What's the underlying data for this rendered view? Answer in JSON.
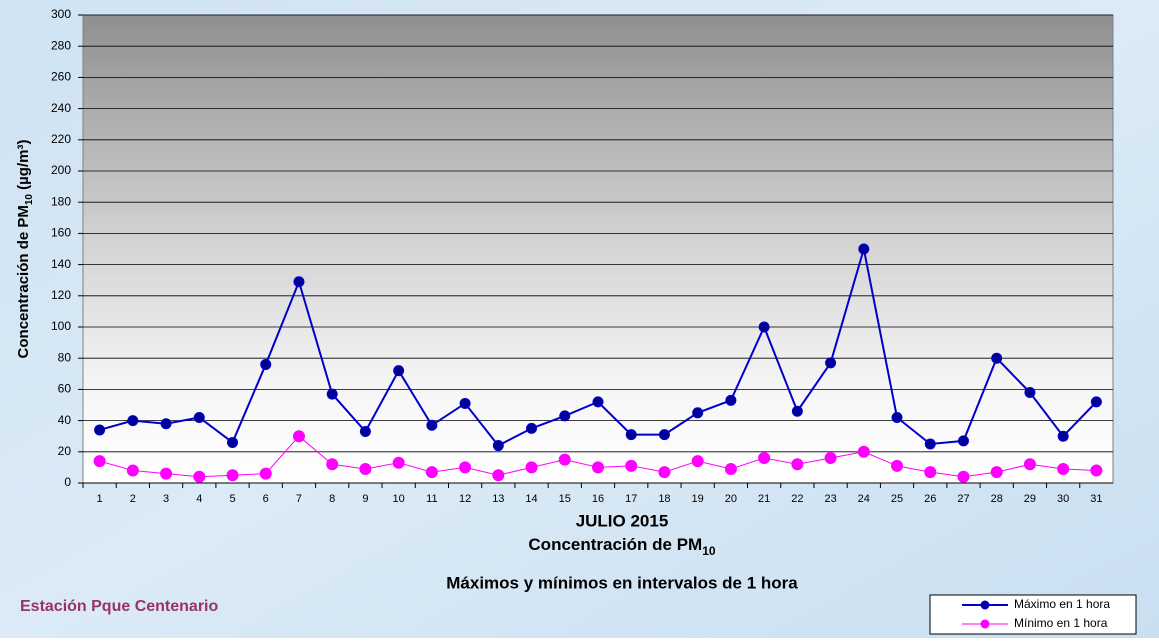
{
  "chart_data": {
    "type": "line",
    "title_lines": [
      "JULIO 2015",
      {
        "text": "Concentración de PM",
        "sub": "10"
      },
      "Máximos y mínimos en intervalos de 1 hora"
    ],
    "station": "Estación Pque Centenario",
    "y_label": {
      "text": "Concentración de PM",
      "sub": "10",
      "suffix": " (µg/m³)"
    },
    "categories": [
      "1",
      "2",
      "3",
      "4",
      "5",
      "6",
      "7",
      "8",
      "9",
      "10",
      "11",
      "12",
      "13",
      "14",
      "15",
      "16",
      "17",
      "18",
      "19",
      "20",
      "21",
      "22",
      "23",
      "24",
      "25",
      "26",
      "27",
      "28",
      "29",
      "30",
      "31"
    ],
    "series": [
      {
        "name": "Máximo en 1 hora",
        "color": "#0000cc",
        "marker_color": "#000099",
        "values": [
          34,
          40,
          38,
          42,
          26,
          76,
          129,
          57,
          33,
          72,
          37,
          51,
          24,
          35,
          43,
          52,
          31,
          31,
          45,
          53,
          100,
          46,
          77,
          150,
          42,
          25,
          27,
          80,
          58,
          30,
          52
        ]
      },
      {
        "name": "Mínimo en 1 hora",
        "color": "#ff00ff",
        "marker_color": "#ff00ff",
        "values": [
          14,
          8,
          6,
          4,
          5,
          6,
          30,
          12,
          9,
          13,
          7,
          10,
          5,
          10,
          15,
          10,
          11,
          7,
          14,
          9,
          16,
          12,
          16,
          20,
          11,
          7,
          4,
          7,
          12,
          9,
          8
        ]
      }
    ],
    "ylim": [
      0,
      300
    ],
    "yticks": [
      0,
      20,
      40,
      60,
      80,
      100,
      120,
      140,
      160,
      180,
      200,
      220,
      240,
      260,
      280,
      300
    ],
    "grid": true
  }
}
